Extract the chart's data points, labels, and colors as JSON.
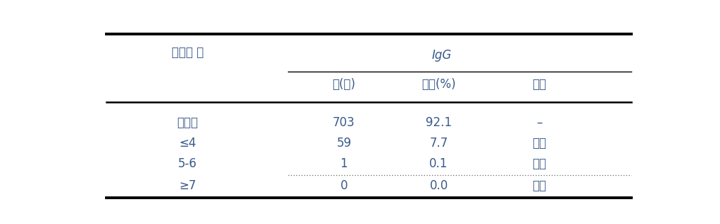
{
  "header_col": "항체값 합",
  "header_group": "IgG",
  "subheaders": [
    "수(명)",
    "누적(%)",
    "결과"
  ],
  "rows": [
    [
      "미시행",
      "703",
      "92.1",
      "–"
    ],
    [
      "≤4",
      "59",
      "7.7",
      "음성"
    ],
    [
      "5-6",
      "1",
      "0.1",
      "경계"
    ],
    [
      "≥7",
      "0",
      "0.0",
      "양성"
    ]
  ],
  "text_color_blue": "#3a5a8c",
  "bg_color": "#ffffff",
  "border_color": "#000000",
  "dotted_color": "#666666",
  "font_size": 12,
  "figsize": [
    10.15,
    3.16
  ],
  "dpi": 100
}
